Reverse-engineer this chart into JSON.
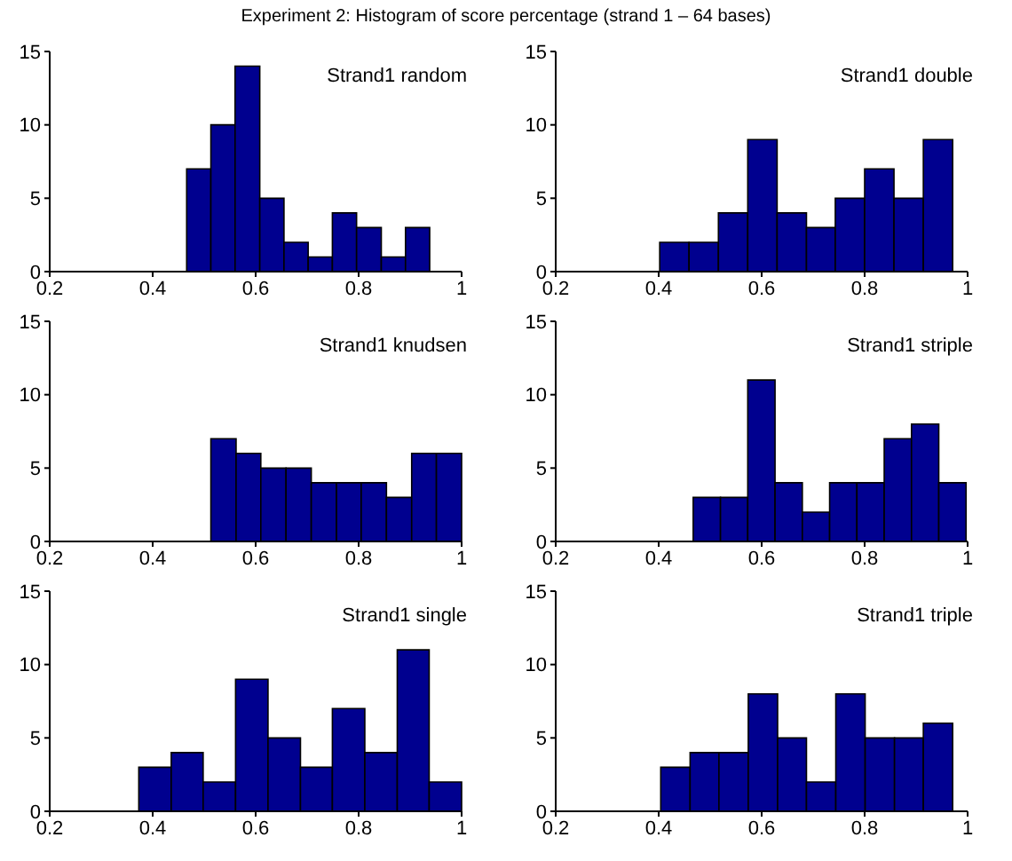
{
  "chart_data": [
    {
      "type": "histogram",
      "title": "Experiment 2: Histogram of score percentage (strand 1 – 64 bases)",
      "annotations": [
        "Strand1 random"
      ],
      "bins": [
        0.466,
        0.513,
        0.56,
        0.608,
        0.655,
        0.702,
        0.749,
        0.796,
        0.844,
        0.891,
        0.938
      ],
      "values": [
        7,
        10,
        14,
        5,
        2,
        1,
        4,
        3,
        1,
        3
      ],
      "color": "#00008f",
      "xlim": [
        0.2,
        1
      ],
      "xticks": [
        0.2,
        0.4,
        0.6,
        0.8,
        1
      ],
      "ylim": [
        0,
        15
      ],
      "yticks": [
        0,
        5,
        10,
        15
      ]
    },
    {
      "type": "histogram",
      "annotations": [
        "Strand1 double"
      ],
      "bins": [
        0.402,
        0.459,
        0.516,
        0.573,
        0.63,
        0.687,
        0.743,
        0.8,
        0.857,
        0.914,
        0.971
      ],
      "values": [
        2,
        2,
        4,
        9,
        4,
        3,
        5,
        7,
        5,
        9
      ],
      "color": "#00008f",
      "xlim": [
        0.2,
        1
      ],
      "xticks": [
        0.2,
        0.4,
        0.6,
        0.8,
        1
      ],
      "ylim": [
        0,
        15
      ],
      "yticks": [
        0,
        5,
        10,
        15
      ]
    },
    {
      "type": "histogram",
      "annotations": [
        "Strand1 knudsen"
      ],
      "bins": [
        0.513,
        0.562,
        0.61,
        0.659,
        0.708,
        0.757,
        0.805,
        0.854,
        0.903,
        0.951,
        1.0
      ],
      "values": [
        7,
        6,
        5,
        5,
        4,
        4,
        4,
        3,
        6,
        6
      ],
      "color": "#00008f",
      "xlim": [
        0.2,
        1
      ],
      "xticks": [
        0.2,
        0.4,
        0.6,
        0.8,
        1
      ],
      "ylim": [
        0,
        15
      ],
      "yticks": [
        0,
        5,
        10,
        15
      ]
    },
    {
      "type": "histogram",
      "annotations": [
        "Strand1 striple"
      ],
      "bins": [
        0.467,
        0.52,
        0.573,
        0.626,
        0.679,
        0.732,
        0.785,
        0.838,
        0.891,
        0.944,
        0.997
      ],
      "values": [
        3,
        3,
        11,
        4,
        2,
        4,
        4,
        7,
        8,
        4
      ],
      "color": "#00008f",
      "xlim": [
        0.2,
        1
      ],
      "xticks": [
        0.2,
        0.4,
        0.6,
        0.8,
        1
      ],
      "ylim": [
        0,
        15
      ],
      "yticks": [
        0,
        5,
        10,
        15
      ]
    },
    {
      "type": "histogram",
      "annotations": [
        "Strand1 single"
      ],
      "bins": [
        0.373,
        0.436,
        0.498,
        0.561,
        0.624,
        0.687,
        0.749,
        0.812,
        0.875,
        0.937,
        1.0
      ],
      "values": [
        3,
        4,
        2,
        9,
        5,
        3,
        7,
        4,
        11,
        2
      ],
      "color": "#00008f",
      "xlim": [
        0.2,
        1
      ],
      "xticks": [
        0.2,
        0.4,
        0.6,
        0.8,
        1
      ],
      "ylim": [
        0,
        15
      ],
      "yticks": [
        0,
        5,
        10,
        15
      ]
    },
    {
      "type": "histogram",
      "annotations": [
        "Strand1 triple"
      ],
      "bins": [
        0.404,
        0.461,
        0.517,
        0.574,
        0.631,
        0.687,
        0.744,
        0.801,
        0.858,
        0.914,
        0.971
      ],
      "values": [
        3,
        4,
        4,
        8,
        5,
        2,
        8,
        5,
        5,
        6
      ],
      "color": "#00008f",
      "xlim": [
        0.2,
        1
      ],
      "xticks": [
        0.2,
        0.4,
        0.6,
        0.8,
        1
      ],
      "ylim": [
        0,
        15
      ],
      "yticks": [
        0,
        5,
        10,
        15
      ]
    }
  ]
}
